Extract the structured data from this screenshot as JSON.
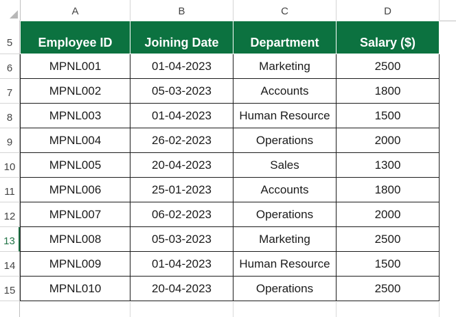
{
  "sheet": {
    "columns": [
      "A",
      "B",
      "C",
      "D"
    ],
    "rows": [
      "5",
      "6",
      "7",
      "8",
      "9",
      "10",
      "11",
      "12",
      "13",
      "14",
      "15"
    ],
    "selected_row": "13",
    "header_fill": "#0c7240"
  },
  "table": {
    "headers": [
      "Employee ID",
      "Joining Date",
      "Department",
      "Salary ($)"
    ],
    "rows": [
      [
        "MPNL001",
        "01-04-2023",
        "Marketing",
        "2500"
      ],
      [
        "MPNL002",
        "05-03-2023",
        "Accounts",
        "1800"
      ],
      [
        "MPNL003",
        "01-04-2023",
        "Human Resource",
        "1500"
      ],
      [
        "MPNL004",
        "26-02-2023",
        "Operations",
        "2000"
      ],
      [
        "MPNL005",
        "20-04-2023",
        "Sales",
        "1300"
      ],
      [
        "MPNL006",
        "25-01-2023",
        "Accounts",
        "1800"
      ],
      [
        "MPNL007",
        "06-02-2023",
        "Operations",
        "2000"
      ],
      [
        "MPNL008",
        "05-03-2023",
        "Marketing",
        "2500"
      ],
      [
        "MPNL009",
        "01-04-2023",
        "Human Resource",
        "1500"
      ],
      [
        "MPNL010",
        "20-04-2023",
        "Operations",
        "2500"
      ]
    ]
  }
}
